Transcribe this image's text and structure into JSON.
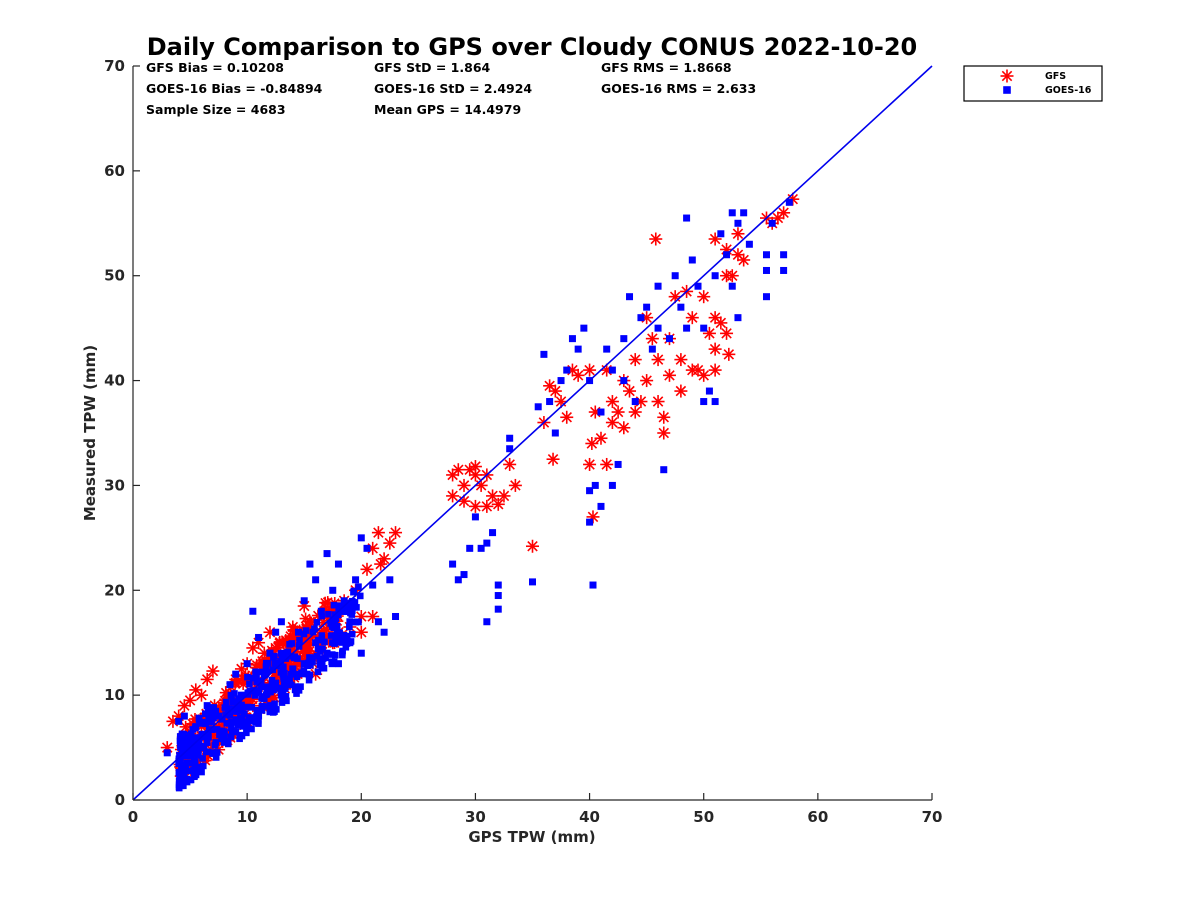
{
  "chart_data": {
    "type": "scatter",
    "title": "Daily Comparison to GPS over Cloudy CONUS 2022-10-20",
    "xlabel": "GPS TPW (mm)",
    "ylabel": "Measured TPW (mm)",
    "xlim": [
      0,
      70
    ],
    "ylim": [
      0,
      70
    ],
    "xticks": [
      "0",
      "10",
      "20",
      "30",
      "40",
      "50",
      "60",
      "70"
    ],
    "yticks": [
      "0",
      "10",
      "20",
      "30",
      "40",
      "50",
      "60",
      "70"
    ],
    "grid": false,
    "legend_position": "outside top-right",
    "one_to_one_line": {
      "x": [
        0,
        70
      ],
      "y": [
        0,
        70
      ],
      "color": "#0000ee"
    },
    "stats": [
      [
        "GFS Bias = 0.10208",
        "GFS StD = 1.864",
        "GFS RMS = 1.8668"
      ],
      [
        "GOES-16 Bias = -0.84894",
        "GOES-16 StD = 2.4924",
        "GOES-16 RMS = 2.633"
      ],
      [
        "Sample Size = 4683",
        "Mean GPS = 14.4979",
        ""
      ]
    ],
    "series": [
      {
        "name": "GFS",
        "marker": "asterisk",
        "color": "#ff0000",
        "points": [
          [
            3,
            5
          ],
          [
            3.5,
            7.5
          ],
          [
            4,
            8
          ],
          [
            4.5,
            9
          ],
          [
            5,
            9.5
          ],
          [
            5.5,
            10.5
          ],
          [
            6,
            10
          ],
          [
            6.5,
            11.5
          ],
          [
            7,
            12.3
          ],
          [
            6,
            7
          ],
          [
            5,
            6.5
          ],
          [
            6.2,
            4.8
          ],
          [
            7,
            5.2
          ],
          [
            7.5,
            4.8
          ],
          [
            8,
            6
          ],
          [
            8.5,
            9
          ],
          [
            9,
            11.5
          ],
          [
            9.5,
            12.5
          ],
          [
            10,
            13
          ],
          [
            10.5,
            14.5
          ],
          [
            11,
            15
          ],
          [
            11.5,
            14
          ],
          [
            12,
            16
          ],
          [
            12.5,
            14.5
          ],
          [
            13,
            13
          ],
          [
            13.5,
            15
          ],
          [
            14,
            16.5
          ],
          [
            14.5,
            15.5
          ],
          [
            15,
            18.5
          ],
          [
            15.5,
            17
          ],
          [
            16,
            14
          ],
          [
            16.5,
            16
          ],
          [
            17,
            17.5
          ],
          [
            17.5,
            15
          ],
          [
            18,
            16
          ],
          [
            18.5,
            19
          ],
          [
            19,
            16.5
          ],
          [
            19.5,
            20
          ],
          [
            20,
            17.5
          ],
          [
            20.5,
            22
          ],
          [
            21,
            24
          ],
          [
            21.5,
            25.5
          ],
          [
            22,
            23
          ],
          [
            22.5,
            24.5
          ],
          [
            23,
            25.5
          ],
          [
            21,
            17.5
          ],
          [
            20,
            16
          ],
          [
            21.7,
            22.5
          ],
          [
            12,
            13
          ],
          [
            13,
            11
          ],
          [
            16,
            12
          ],
          [
            8,
            8.5
          ],
          [
            9,
            7.5
          ],
          [
            10.5,
            9
          ],
          [
            11,
            11
          ],
          [
            7.5,
            7
          ],
          [
            28,
            29
          ],
          [
            28,
            31
          ],
          [
            28.5,
            31.5
          ],
          [
            29,
            30
          ],
          [
            29.5,
            31.5
          ],
          [
            30,
            31
          ],
          [
            30.5,
            30
          ],
          [
            31,
            31
          ],
          [
            29,
            28.5
          ],
          [
            30,
            28
          ],
          [
            31,
            28
          ],
          [
            31.5,
            29
          ],
          [
            32,
            28.2
          ],
          [
            32.5,
            29
          ],
          [
            33,
            32
          ],
          [
            33.5,
            30
          ],
          [
            30,
            31.8
          ],
          [
            35,
            24.2
          ],
          [
            36,
            36
          ],
          [
            36.5,
            39.5
          ],
          [
            36.8,
            32.5
          ],
          [
            37,
            39
          ],
          [
            37.5,
            38
          ],
          [
            38,
            36.5
          ],
          [
            38.5,
            41
          ],
          [
            39,
            40.5
          ],
          [
            40,
            41
          ],
          [
            40,
            32
          ],
          [
            40.2,
            34
          ],
          [
            40.5,
            37
          ],
          [
            41,
            34.5
          ],
          [
            41.5,
            32
          ],
          [
            41.5,
            41
          ],
          [
            42,
            38
          ],
          [
            42,
            36
          ],
          [
            42.5,
            37
          ],
          [
            43,
            40
          ],
          [
            43,
            35.5
          ],
          [
            43.5,
            39
          ],
          [
            44,
            42
          ],
          [
            44,
            37
          ],
          [
            44.5,
            38
          ],
          [
            45,
            46
          ],
          [
            45,
            40
          ],
          [
            45.5,
            44
          ],
          [
            45.8,
            53.5
          ],
          [
            46,
            42
          ],
          [
            46,
            38
          ],
          [
            46.5,
            36.5
          ],
          [
            46.5,
            35
          ],
          [
            47,
            40.5
          ],
          [
            47,
            44
          ],
          [
            47.5,
            48
          ],
          [
            48,
            42
          ],
          [
            48,
            39
          ],
          [
            48.5,
            48.5
          ],
          [
            49,
            46
          ],
          [
            49,
            41
          ],
          [
            49.5,
            41
          ],
          [
            50,
            48
          ],
          [
            50,
            40.5
          ],
          [
            50.5,
            44.5
          ],
          [
            51,
            53.5
          ],
          [
            51,
            46
          ],
          [
            51,
            43
          ],
          [
            51,
            41
          ],
          [
            51.5,
            45.5
          ],
          [
            52,
            50
          ],
          [
            52,
            52.5
          ],
          [
            52,
            44.5
          ],
          [
            52.2,
            42.5
          ],
          [
            52.5,
            50
          ],
          [
            53,
            54
          ],
          [
            53,
            52
          ],
          [
            53.5,
            51.5
          ],
          [
            55.5,
            55.5
          ],
          [
            56,
            55
          ],
          [
            56.5,
            55.5
          ],
          [
            57,
            56
          ],
          [
            57.8,
            57.3
          ],
          [
            40.3,
            27
          ]
        ]
      },
      {
        "name": "GOES-16",
        "marker": "square",
        "color": "#0000ff",
        "points": [
          [
            3,
            4.5
          ],
          [
            4,
            7.5
          ],
          [
            4.5,
            8
          ],
          [
            5,
            6
          ],
          [
            5.5,
            7
          ],
          [
            6,
            5
          ],
          [
            6.5,
            9
          ],
          [
            7,
            4.5
          ],
          [
            7.5,
            8
          ],
          [
            8,
            6.5
          ],
          [
            8.5,
            11
          ],
          [
            9,
            12
          ],
          [
            9.5,
            10
          ],
          [
            10,
            13
          ],
          [
            10.5,
            18
          ],
          [
            11,
            15.5
          ],
          [
            11.5,
            12
          ],
          [
            12,
            14
          ],
          [
            12.5,
            16
          ],
          [
            13,
            17
          ],
          [
            13.5,
            11
          ],
          [
            14,
            12.5
          ],
          [
            14.5,
            16
          ],
          [
            15,
            19
          ],
          [
            15.5,
            22.5
          ],
          [
            16,
            21
          ],
          [
            16.5,
            18
          ],
          [
            17,
            23.5
          ],
          [
            17.5,
            20
          ],
          [
            18,
            22.5
          ],
          [
            18.5,
            19
          ],
          [
            19,
            17
          ],
          [
            19.5,
            21
          ],
          [
            20,
            25
          ],
          [
            20.5,
            24
          ],
          [
            21,
            20.5
          ],
          [
            21.5,
            17
          ],
          [
            22,
            16
          ],
          [
            22.5,
            21
          ],
          [
            23,
            17.5
          ],
          [
            13,
            10
          ],
          [
            15,
            13
          ],
          [
            16,
            15
          ],
          [
            17,
            14
          ],
          [
            18,
            13
          ],
          [
            19,
            15
          ],
          [
            20,
            14
          ],
          [
            12,
            9
          ],
          [
            11,
            8
          ],
          [
            10,
            7
          ],
          [
            9,
            6.5
          ],
          [
            8,
            5.5
          ],
          [
            28,
            22.5
          ],
          [
            28.5,
            21
          ],
          [
            29,
            21.5
          ],
          [
            29.5,
            24
          ],
          [
            30,
            27
          ],
          [
            30.5,
            24
          ],
          [
            31,
            17
          ],
          [
            31,
            24.5
          ],
          [
            31.5,
            25.5
          ],
          [
            32,
            20.5
          ],
          [
            32,
            19.5
          ],
          [
            32,
            18.2
          ],
          [
            33,
            33.5
          ],
          [
            33,
            34.5
          ],
          [
            35,
            20.8
          ],
          [
            35.5,
            37.5
          ],
          [
            36,
            42.5
          ],
          [
            36.5,
            38
          ],
          [
            37,
            35
          ],
          [
            37.5,
            40
          ],
          [
            38,
            41
          ],
          [
            38.5,
            44
          ],
          [
            39,
            43
          ],
          [
            39.5,
            45
          ],
          [
            40,
            40
          ],
          [
            40,
            29.5
          ],
          [
            40,
            26.5
          ],
          [
            40.3,
            20.5
          ],
          [
            40.5,
            30
          ],
          [
            41,
            28
          ],
          [
            41,
            37
          ],
          [
            41.5,
            43
          ],
          [
            42,
            41
          ],
          [
            42,
            30
          ],
          [
            42.5,
            32
          ],
          [
            43,
            44
          ],
          [
            43,
            40
          ],
          [
            43.5,
            48
          ],
          [
            44,
            38
          ],
          [
            44.5,
            46
          ],
          [
            45,
            47
          ],
          [
            45.5,
            43
          ],
          [
            46,
            49
          ],
          [
            46.5,
            31.5
          ],
          [
            46,
            45
          ],
          [
            47,
            44
          ],
          [
            47.5,
            50
          ],
          [
            48,
            47
          ],
          [
            48.5,
            45
          ],
          [
            48.5,
            55.5
          ],
          [
            49,
            51.5
          ],
          [
            49.5,
            49
          ],
          [
            50,
            45
          ],
          [
            50,
            38
          ],
          [
            50.5,
            39
          ],
          [
            51,
            38
          ],
          [
            51,
            50
          ],
          [
            51.5,
            54
          ],
          [
            52,
            52
          ],
          [
            52.5,
            49
          ],
          [
            52.5,
            56
          ],
          [
            53,
            55
          ],
          [
            53,
            46
          ],
          [
            53.5,
            56
          ],
          [
            54,
            53
          ],
          [
            55.5,
            52
          ],
          [
            55.5,
            50.5
          ],
          [
            55.5,
            48
          ],
          [
            56,
            55
          ],
          [
            57,
            52
          ],
          [
            57,
            50.5
          ],
          [
            57.5,
            57
          ]
        ]
      }
    ]
  }
}
